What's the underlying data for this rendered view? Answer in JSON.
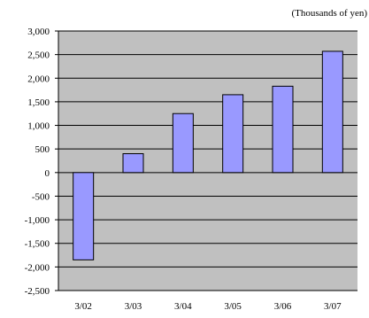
{
  "chart_data": {
    "type": "bar",
    "unit_note": "(Thousands of yen)",
    "categories": [
      "3/02",
      "3/03",
      "3/04",
      "3/05",
      "3/06",
      "3/07"
    ],
    "values": [
      -1850,
      400,
      1250,
      1650,
      1830,
      2570
    ],
    "ylim": [
      -2500,
      3000
    ],
    "yticks": [
      3000,
      2500,
      2000,
      1500,
      1000,
      500,
      0,
      -500,
      -1000,
      -1500,
      -2000,
      -2500
    ],
    "ytick_labels": [
      "3,000",
      "2,500",
      "2,000",
      "1,500",
      "1,000",
      "500",
      "0",
      "-500",
      "-1,000",
      "-1,500",
      "-2,000",
      "-2,500"
    ],
    "grid": true,
    "colors": {
      "plot_background": "#c0c0c0",
      "bar_fill": "#9999ff",
      "bar_stroke": "#000000",
      "grid": "#000000"
    }
  }
}
